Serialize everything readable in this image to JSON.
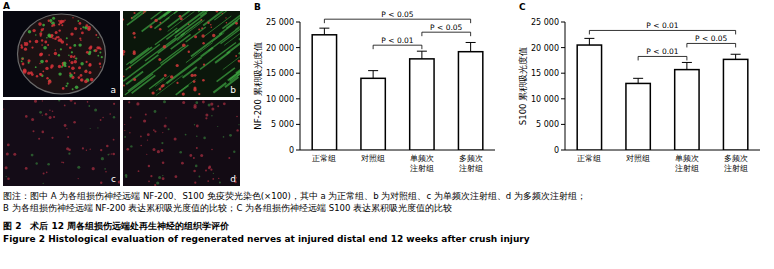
{
  "panel_a": {
    "label": "A",
    "images": [
      {
        "label": "a"
      },
      {
        "label": "b"
      },
      {
        "label": "c"
      },
      {
        "label": "d"
      }
    ]
  },
  "chart_data": [
    {
      "type": "bar",
      "label": "B",
      "y_label": "NF-200 累积吸光度值",
      "categories": [
        "正常组",
        "对照组",
        "单频次注射组",
        "多频次注射组"
      ],
      "values": [
        22500,
        14000,
        17800,
        19200
      ],
      "errors": [
        1300,
        1500,
        1500,
        1800
      ],
      "color": "#ffffff",
      "ylim": [
        0,
        25000
      ],
      "yticks": [
        0,
        {
          "value": 5000,
          "label": "5 000"
        },
        {
          "value": 10000,
          "label": "10 000"
        },
        {
          "value": 15000,
          "label": "15 000"
        },
        {
          "value": 20000,
          "label": "20 000"
        },
        {
          "value": 25000,
          "label": "25 000"
        }
      ],
      "grid": false,
      "annotations": [
        {
          "text": "P < 0.05",
          "from": 0,
          "to": 3
        },
        {
          "text": "P < 0.01",
          "from": 1,
          "to": 2
        },
        {
          "text": "P < 0.05",
          "from": 2,
          "to": 3
        }
      ]
    },
    {
      "type": "bar",
      "label": "C",
      "y_label": "S100 累积吸光度值",
      "categories": [
        "正常组",
        "对照组",
        "单频次注射组",
        "多频次注射组"
      ],
      "values": [
        20500,
        13000,
        15700,
        17700
      ],
      "errors": [
        1300,
        1000,
        1400,
        1000
      ],
      "color": "#ffffff",
      "ylim": [
        0,
        25000
      ],
      "yticks": [
        0,
        {
          "value": 5000,
          "label": "5 000"
        },
        {
          "value": 10000,
          "label": "10 000"
        },
        {
          "value": 15000,
          "label": "15 000"
        },
        {
          "value": 20000,
          "label": "20 000"
        },
        {
          "value": 25000,
          "label": "25 000"
        }
      ],
      "grid": false,
      "annotations": [
        {
          "text": "P < 0.01",
          "from": 0,
          "to": 3
        },
        {
          "text": "P < 0.01",
          "from": 1,
          "to": 2
        },
        {
          "text": "P < 0.05",
          "from": 2,
          "to": 3
        }
      ]
    }
  ],
  "caption": {
    "lines": [
      "图注：图中 A 为各组损伤神经远端 NF-200、S100 免疫荧光染色(×100)，其中 a 为正常组、b 为对照组、c 为单频次注射组、d 为多频次注射组；",
      "B 为各组损伤神经远端 NF-200 表达累积吸光度值的比较；C 为各组损伤神经远端 S100 表达累积吸光度值的比较",
      "图 2　术后 12 周各组损伤远端处再生神经的组织学评价",
      "Figure 2   Histological evaluation of regenerated nerves at injured distal end 12 weeks after crush injury"
    ]
  }
}
